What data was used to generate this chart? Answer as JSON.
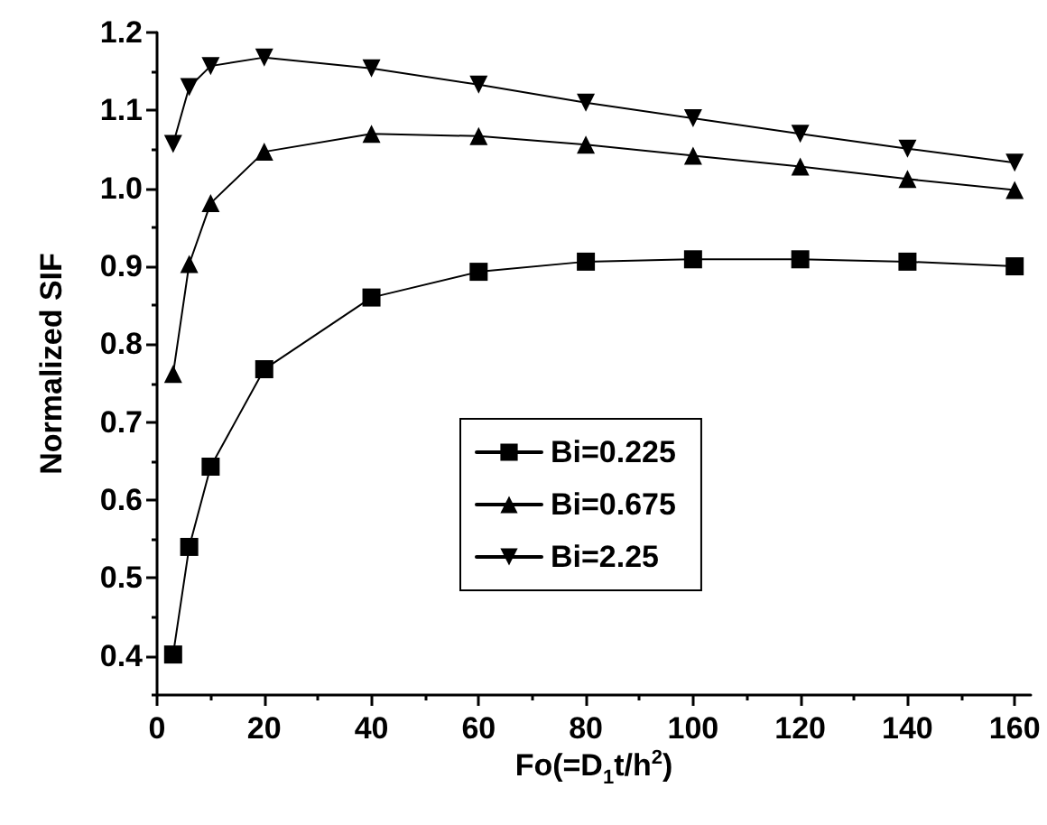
{
  "chart_data": {
    "type": "line",
    "xlabel": "Fo(=D$_{1}$t/h$^{2}$)",
    "ylabel": "Normalized SIF",
    "x": [
      3,
      6,
      10,
      20,
      40,
      60,
      80,
      100,
      120,
      140,
      160
    ],
    "series": [
      {
        "name": "Bi=0.225",
        "color": "#000000",
        "marker": "square",
        "values": [
          0.402,
          0.54,
          0.643,
          0.768,
          0.86,
          0.893,
          0.906,
          0.909,
          0.909,
          0.906,
          0.9
        ]
      },
      {
        "name": "Bi=0.675",
        "color": "#000000",
        "marker": "triangle",
        "values": [
          0.762,
          0.903,
          0.981,
          1.047,
          1.07,
          1.067,
          1.056,
          1.042,
          1.028,
          1.012,
          0.998
        ]
      },
      {
        "name": "Bi=2.25",
        "color": "#000000",
        "marker": "triangle_down",
        "values": [
          1.057,
          1.13,
          1.157,
          1.168,
          1.154,
          1.133,
          1.11,
          1.09,
          1.07,
          1.051,
          1.033
        ]
      }
    ],
    "xlim": [
      0,
      163
    ],
    "xticks": [
      0,
      20,
      40,
      60,
      80,
      100,
      120,
      140,
      160
    ],
    "ylim": [
      0.35,
      1.2
    ],
    "yticks": [
      0.4,
      0.5,
      0.6,
      0.7,
      0.8,
      0.9,
      {
        "value": 1,
        "label": "1.0"
      },
      1.1,
      1.2
    ],
    "grid": false,
    "legend": "right",
    "line_style": "solid"
  }
}
